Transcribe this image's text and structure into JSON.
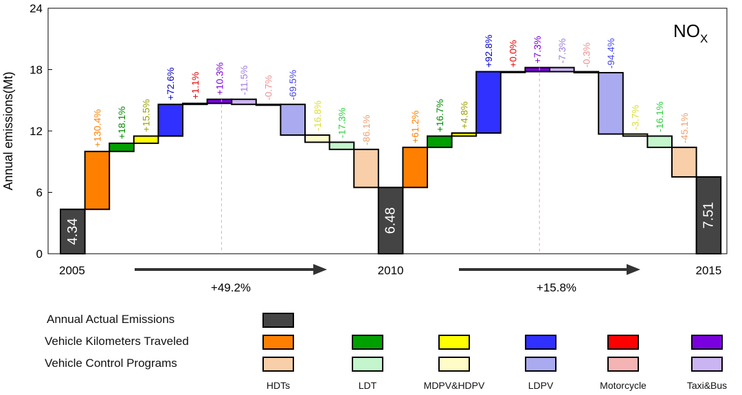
{
  "chart_data": {
    "type": "bar",
    "subtype": "waterfall",
    "annotation": "NOX",
    "ylabel": "Annual emissions(Mt)",
    "ylim": [
      0,
      24
    ],
    "yticks": [
      "0",
      "6",
      "12",
      "18",
      "24"
    ],
    "x_labels": [
      "2005",
      "2010",
      "2015"
    ],
    "period_changes": [
      "+49.2%",
      "+15.8%"
    ],
    "periods": [
      {
        "start_year": "2005",
        "start_value": 4.34,
        "start_label": "4.34",
        "steps": [
          {
            "group": "vkt",
            "vehicle": "HDTs",
            "label": "+130.4%",
            "from": 4.34,
            "to": 10.0
          },
          {
            "group": "vkt",
            "vehicle": "LDT",
            "label": "+18.1%",
            "from": 10.0,
            "to": 10.8
          },
          {
            "group": "vkt",
            "vehicle": "MDPV&HDPV",
            "label": "+15.5%",
            "from": 10.8,
            "to": 11.5
          },
          {
            "group": "vkt",
            "vehicle": "LDPV",
            "label": "+72.6%",
            "from": 11.5,
            "to": 14.6
          },
          {
            "group": "vkt",
            "vehicle": "Motorcycle",
            "label": "+1.1%",
            "from": 14.6,
            "to": 14.7
          },
          {
            "group": "vkt",
            "vehicle": "Taxi&Bus",
            "label": "+10.3%",
            "from": 14.7,
            "to": 15.1
          },
          {
            "group": "control",
            "vehicle": "Taxi&Bus",
            "label": "-11.5%",
            "from": 15.1,
            "to": 14.6
          },
          {
            "group": "control",
            "vehicle": "Motorcycle",
            "label": "-0.7%",
            "from": 14.6,
            "to": 14.6
          },
          {
            "group": "control",
            "vehicle": "LDPV",
            "label": "-69.5%",
            "from": 14.6,
            "to": 11.6
          },
          {
            "group": "control",
            "vehicle": "MDPV&HDPV",
            "label": "-16.8%",
            "from": 11.6,
            "to": 10.9
          },
          {
            "group": "control",
            "vehicle": "LDT",
            "label": "-17.3%",
            "from": 10.9,
            "to": 10.2
          },
          {
            "group": "control",
            "vehicle": "HDTs",
            "label": "-86.1%",
            "from": 10.2,
            "to": 6.48
          }
        ]
      },
      {
        "start_year": "2010",
        "start_value": 6.48,
        "start_label": "6.48",
        "steps": [
          {
            "group": "vkt",
            "vehicle": "HDTs",
            "label": "+61.2%",
            "from": 6.48,
            "to": 10.4
          },
          {
            "group": "vkt",
            "vehicle": "LDT",
            "label": "+16.7%",
            "from": 10.4,
            "to": 11.5
          },
          {
            "group": "vkt",
            "vehicle": "MDPV&HDPV",
            "label": "+4.8%",
            "from": 11.5,
            "to": 11.8
          },
          {
            "group": "vkt",
            "vehicle": "LDPV",
            "label": "+92.8%",
            "from": 11.8,
            "to": 17.8
          },
          {
            "group": "vkt",
            "vehicle": "Motorcycle",
            "label": "+0.0%",
            "from": 17.8,
            "to": 17.8
          },
          {
            "group": "vkt",
            "vehicle": "Taxi&Bus",
            "label": "+7.3%",
            "from": 17.8,
            "to": 18.2
          },
          {
            "group": "control",
            "vehicle": "Taxi&Bus",
            "label": "-7.3%",
            "from": 18.2,
            "to": 17.8
          },
          {
            "group": "control",
            "vehicle": "Motorcycle",
            "label": "-0.3%",
            "from": 17.8,
            "to": 17.7
          },
          {
            "group": "control",
            "vehicle": "LDPV",
            "label": "-94.4%",
            "from": 17.7,
            "to": 11.7
          },
          {
            "group": "control",
            "vehicle": "MDPV&HDPV",
            "label": "-3.7%",
            "from": 11.7,
            "to": 11.5
          },
          {
            "group": "control",
            "vehicle": "LDT",
            "label": "-16.1%",
            "from": 11.5,
            "to": 10.4
          },
          {
            "group": "control",
            "vehicle": "HDTs",
            "label": "-45.1%",
            "from": 10.4,
            "to": 7.51
          }
        ]
      }
    ],
    "end_year": "2015",
    "end_value": 7.51,
    "end_label": "7.51",
    "actual_color": "#444444",
    "vkt_colors": {
      "HDTs": "#ff8000",
      "LDT": "#00a000",
      "MDPV&HDPV": "#ffff00",
      "LDPV": "#3030ff",
      "Motorcycle": "#ff0000",
      "Taxi&Bus": "#7b00e0"
    },
    "control_colors": {
      "HDTs": "#f8cfa8",
      "LDT": "#c4f5cc",
      "MDPV&HDPV": "#fffcc8",
      "LDPV": "#aaaaf0",
      "Motorcycle": "#f5b4b4",
      "Taxi&Bus": "#cbb4f2"
    },
    "label_colors": {
      "vkt": {
        "HDTs": "#ff8000",
        "LDT": "#008800",
        "MDPV&HDPV": "#9aa000",
        "LDPV": "#0000cc",
        "Motorcycle": "#ee0000",
        "Taxi&Bus": "#7b00e0"
      },
      "control": {
        "HDTs": "#f0a070",
        "LDT": "#30d040",
        "MDPV&HDPV": "#dddd30",
        "LDPV": "#4444ee",
        "Motorcycle": "#f09090",
        "Taxi&Bus": "#a07ce0"
      }
    },
    "legend": {
      "rows": [
        "Annual Actual Emissions",
        "Vehicle Kilometers Traveled",
        "Vehicle  Control   Programs"
      ],
      "categories": [
        "HDTs",
        "LDT",
        "MDPV&HDPV",
        "LDPV",
        "Motorcycle",
        "Taxi&Bus"
      ]
    }
  }
}
